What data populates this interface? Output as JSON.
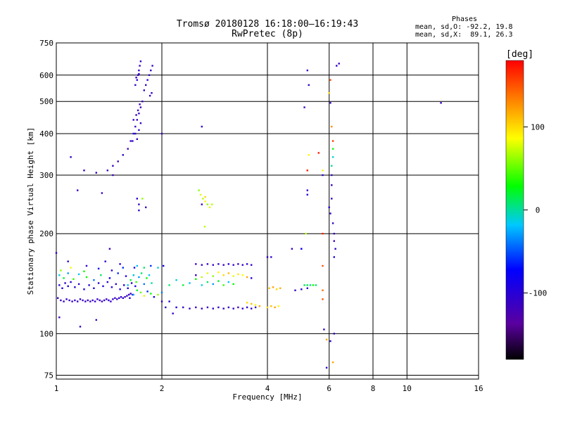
{
  "header": {
    "title_line1": "Tromsø 20180128 16:18:00–16:19:43",
    "title_line2": "RwPretec (8p)"
  },
  "stats": {
    "title": "Phases",
    "line1": "mean, sd,O: -92.2, 19.8",
    "line2": "mean, sd,X:  89.1, 26.3"
  },
  "colorbar": {
    "unit": "[deg]",
    "ticks": [
      "100",
      "0",
      "-100"
    ],
    "tick_values": [
      100,
      0,
      -100
    ],
    "range": [
      -180,
      180
    ]
  },
  "chart_data": {
    "type": "scatter",
    "xlabel": "Frequency [MHz]",
    "ylabel": "Stationary phase Virtual Height [km]",
    "xscale": "log",
    "yscale": "log",
    "xlim": [
      1,
      16
    ],
    "ylim": [
      73,
      750
    ],
    "xticks": [
      "1",
      "2",
      "4",
      "6",
      "8",
      "10",
      "16"
    ],
    "xtick_values": [
      1,
      2,
      4,
      6,
      8,
      10,
      16
    ],
    "yticks": [
      "75",
      "100",
      "200",
      "300",
      "400",
      "500",
      "600",
      "750"
    ],
    "ytick_values": [
      75,
      100,
      200,
      300,
      400,
      500,
      600,
      750
    ],
    "grid": true,
    "colorbar_label": "[deg]",
    "points": [
      [
        1.01,
        128,
        -110
      ],
      [
        1.03,
        126,
        -115
      ],
      [
        1.05,
        125,
        -105
      ],
      [
        1.07,
        127,
        -110
      ],
      [
        1.09,
        126,
        -112
      ],
      [
        1.11,
        125,
        -108
      ],
      [
        1.13,
        126,
        -115
      ],
      [
        1.15,
        125,
        -110
      ],
      [
        1.17,
        127,
        -105
      ],
      [
        1.19,
        126,
        -110
      ],
      [
        1.21,
        125,
        -112
      ],
      [
        1.23,
        126,
        -108
      ],
      [
        1.25,
        125,
        -115
      ],
      [
        1.27,
        126,
        -110
      ],
      [
        1.29,
        125,
        -105
      ],
      [
        1.31,
        127,
        -110
      ],
      [
        1.33,
        126,
        -112
      ],
      [
        1.35,
        125,
        -108
      ],
      [
        1.37,
        126,
        -115
      ],
      [
        1.39,
        127,
        -110
      ],
      [
        1.41,
        126,
        -105
      ],
      [
        1.43,
        125,
        -110
      ],
      [
        1.45,
        127,
        -112
      ],
      [
        1.47,
        128,
        -108
      ],
      [
        1.49,
        127,
        -115
      ],
      [
        1.51,
        128,
        -110
      ],
      [
        1.53,
        129,
        -105
      ],
      [
        1.55,
        128,
        -110
      ],
      [
        1.57,
        129,
        -112
      ],
      [
        1.59,
        130,
        -108
      ],
      [
        1.61,
        131,
        -115
      ],
      [
        1.63,
        132,
        -110
      ],
      [
        1.65,
        131,
        -105
      ],
      [
        1.02,
        140,
        -100
      ],
      [
        1.04,
        137,
        -95
      ],
      [
        1.06,
        142,
        -105
      ],
      [
        1.08,
        139,
        -90
      ],
      [
        1.1,
        143,
        -100
      ],
      [
        1.13,
        138,
        -95
      ],
      [
        1.16,
        141,
        -105
      ],
      [
        1.2,
        136,
        -90
      ],
      [
        1.24,
        140,
        -100
      ],
      [
        1.28,
        137,
        -95
      ],
      [
        1.32,
        142,
        -105
      ],
      [
        1.36,
        139,
        -90
      ],
      [
        1.4,
        143,
        -100
      ],
      [
        1.44,
        138,
        -95
      ],
      [
        1.48,
        141,
        -105
      ],
      [
        1.52,
        136,
        -90
      ],
      [
        1.56,
        140,
        -100
      ],
      [
        1.6,
        137,
        -95
      ],
      [
        1.64,
        142,
        -105
      ],
      [
        1.68,
        139,
        -90
      ],
      [
        1.02,
        150,
        -10
      ],
      [
        1.05,
        147,
        20
      ],
      [
        1.08,
        152,
        -30
      ],
      [
        1.12,
        146,
        40
      ],
      [
        1.16,
        151,
        -20
      ],
      [
        1.22,
        148,
        30
      ],
      [
        1.28,
        145,
        -40
      ],
      [
        1.34,
        150,
        10
      ],
      [
        1.42,
        147,
        -80
      ],
      [
        1.5,
        152,
        -60
      ],
      [
        1.58,
        149,
        -90
      ],
      [
        1.66,
        150,
        -75
      ],
      [
        1.03,
        155,
        60
      ],
      [
        1.1,
        158,
        90
      ],
      [
        1.2,
        154,
        30
      ],
      [
        1.32,
        157,
        -70
      ],
      [
        1.44,
        155,
        -100
      ],
      [
        1.55,
        158,
        -60
      ],
      [
        1.0,
        175,
        -110
      ],
      [
        1.08,
        165,
        -100
      ],
      [
        1.22,
        160,
        -110
      ],
      [
        1.38,
        165,
        -105
      ],
      [
        1.52,
        162,
        -100
      ],
      [
        1.67,
        158,
        -90
      ],
      [
        1.02,
        112,
        -115
      ],
      [
        1.17,
        105,
        -110
      ],
      [
        1.3,
        110,
        -112
      ],
      [
        1.42,
        180,
        -115
      ],
      [
        1.6,
        140,
        -20
      ],
      [
        1.63,
        145,
        20
      ],
      [
        1.66,
        150,
        -10
      ],
      [
        1.69,
        143,
        40
      ],
      [
        1.72,
        148,
        -30
      ],
      [
        1.75,
        152,
        10
      ],
      [
        1.78,
        141,
        -40
      ],
      [
        1.81,
        147,
        30
      ],
      [
        1.84,
        150,
        -20
      ],
      [
        1.87,
        142,
        0
      ],
      [
        1.62,
        128,
        -100
      ],
      [
        1.66,
        131,
        -30
      ],
      [
        1.7,
        135,
        20
      ],
      [
        1.74,
        133,
        50
      ],
      [
        1.78,
        130,
        80
      ],
      [
        1.82,
        134,
        -60
      ],
      [
        1.86,
        132,
        30
      ],
      [
        1.9,
        129,
        -80
      ],
      [
        1.95,
        131,
        60
      ],
      [
        2.0,
        133,
        -40
      ],
      [
        1.7,
        160,
        -20
      ],
      [
        1.78,
        158,
        10
      ],
      [
        1.86,
        160,
        -60
      ],
      [
        1.95,
        158,
        -10
      ],
      [
        2.02,
        160,
        -80
      ],
      [
        2.0,
        125,
        -110
      ],
      [
        2.05,
        120,
        -105
      ],
      [
        2.1,
        125,
        -100
      ],
      [
        2.15,
        115,
        -110
      ],
      [
        2.2,
        120,
        -95
      ],
      [
        1.4,
        310,
        -115
      ],
      [
        1.45,
        320,
        -110
      ],
      [
        1.5,
        330,
        -112
      ],
      [
        1.55,
        345,
        -108
      ],
      [
        1.6,
        360,
        -115
      ],
      [
        1.63,
        380,
        -110
      ],
      [
        1.66,
        400,
        -105
      ],
      [
        1.68,
        420,
        -110
      ],
      [
        1.7,
        440,
        -112
      ],
      [
        1.72,
        460,
        -108
      ],
      [
        1.74,
        480,
        -115
      ],
      [
        1.76,
        500,
        -110
      ],
      [
        1.65,
        380,
        -110
      ],
      [
        1.68,
        400,
        -105
      ],
      [
        1.7,
        385,
        -115
      ],
      [
        1.72,
        410,
        -108
      ],
      [
        1.74,
        430,
        -110
      ],
      [
        1.66,
        440,
        -112
      ],
      [
        1.69,
        455,
        -105
      ],
      [
        1.71,
        470,
        -110
      ],
      [
        1.73,
        490,
        -115
      ],
      [
        1.68,
        560,
        -110
      ],
      [
        1.7,
        580,
        -105
      ],
      [
        1.71,
        600,
        -112
      ],
      [
        1.72,
        620,
        -108
      ],
      [
        1.73,
        640,
        -115
      ],
      [
        1.74,
        660,
        -110
      ],
      [
        1.69,
        590,
        -105
      ],
      [
        1.72,
        605,
        -110
      ],
      [
        1.78,
        540,
        -100
      ],
      [
        1.8,
        560,
        -110
      ],
      [
        1.82,
        580,
        -105
      ],
      [
        1.84,
        600,
        -112
      ],
      [
        1.86,
        620,
        -108
      ],
      [
        1.88,
        640,
        -115
      ],
      [
        1.85,
        520,
        -110
      ],
      [
        1.87,
        530,
        -105
      ],
      [
        1.45,
        300,
        -110
      ],
      [
        1.3,
        305,
        -105
      ],
      [
        1.2,
        310,
        -112
      ],
      [
        1.1,
        340,
        -108
      ],
      [
        1.15,
        270,
        -115
      ],
      [
        1.35,
        265,
        -110
      ],
      [
        1.7,
        255,
        -100
      ],
      [
        1.72,
        245,
        -110
      ],
      [
        1.72,
        235,
        -105
      ],
      [
        1.76,
        255,
        60
      ],
      [
        1.8,
        240,
        -110
      ],
      [
        2.0,
        400,
        -110
      ],
      [
        2.6,
        420,
        -105
      ],
      [
        2.55,
        270,
        60
      ],
      [
        2.58,
        262,
        80
      ],
      [
        2.62,
        255,
        70
      ],
      [
        2.66,
        250,
        90
      ],
      [
        2.7,
        245,
        60
      ],
      [
        2.74,
        240,
        80
      ],
      [
        2.78,
        245,
        70
      ],
      [
        2.66,
        258,
        100
      ],
      [
        2.6,
        245,
        -110
      ],
      [
        2.65,
        210,
        70
      ],
      [
        2.1,
        140,
        10
      ],
      [
        2.2,
        145,
        -10
      ],
      [
        2.3,
        140,
        20
      ],
      [
        2.4,
        142,
        -20
      ],
      [
        2.5,
        146,
        30
      ],
      [
        2.6,
        140,
        -10
      ],
      [
        2.7,
        143,
        10
      ],
      [
        2.8,
        141,
        -30
      ],
      [
        2.9,
        144,
        20
      ],
      [
        3.0,
        140,
        40
      ],
      [
        3.1,
        143,
        -20
      ],
      [
        3.2,
        141,
        30
      ],
      [
        2.5,
        162,
        -110
      ],
      [
        2.6,
        161,
        -105
      ],
      [
        2.7,
        162,
        -115
      ],
      [
        2.8,
        161,
        -108
      ],
      [
        2.9,
        162,
        -110
      ],
      [
        3.0,
        161,
        -112
      ],
      [
        3.1,
        162,
        -105
      ],
      [
        3.2,
        161,
        -110
      ],
      [
        3.3,
        162,
        -115
      ],
      [
        3.4,
        161,
        -108
      ],
      [
        3.5,
        162,
        -110
      ],
      [
        3.6,
        161,
        -112
      ],
      [
        2.5,
        150,
        -110
      ],
      [
        2.6,
        148,
        70
      ],
      [
        2.7,
        152,
        80
      ],
      [
        2.8,
        149,
        60
      ],
      [
        2.9,
        153,
        90
      ],
      [
        3.0,
        150,
        100
      ],
      [
        3.1,
        152,
        110
      ],
      [
        3.2,
        149,
        80
      ],
      [
        3.3,
        151,
        95
      ],
      [
        3.4,
        150,
        85
      ],
      [
        3.5,
        148,
        120
      ],
      [
        3.6,
        147,
        -100
      ],
      [
        2.3,
        120,
        -110
      ],
      [
        2.4,
        119,
        -105
      ],
      [
        2.5,
        120,
        -112
      ],
      [
        2.6,
        119,
        -108
      ],
      [
        2.7,
        120,
        -115
      ],
      [
        2.8,
        119,
        -110
      ],
      [
        2.9,
        120,
        -105
      ],
      [
        3.0,
        119,
        -110
      ],
      [
        3.1,
        120,
        -112
      ],
      [
        3.2,
        119,
        -108
      ],
      [
        3.3,
        120,
        -115
      ],
      [
        3.4,
        119,
        -110
      ],
      [
        3.5,
        120,
        -105
      ],
      [
        3.6,
        119,
        -110
      ],
      [
        3.7,
        120,
        -112
      ],
      [
        3.5,
        124,
        100
      ],
      [
        3.6,
        123,
        110
      ],
      [
        3.7,
        122,
        90
      ],
      [
        3.8,
        121,
        120
      ],
      [
        4.0,
        120,
        100
      ],
      [
        4.1,
        121,
        110
      ],
      [
        4.2,
        120,
        120
      ],
      [
        4.3,
        121,
        90
      ],
      [
        4.05,
        137,
        110
      ],
      [
        4.15,
        138,
        120
      ],
      [
        4.25,
        136,
        100
      ],
      [
        4.35,
        137,
        115
      ],
      [
        4.0,
        170,
        -110
      ],
      [
        4.1,
        170,
        -105
      ],
      [
        4.7,
        180,
        -110
      ],
      [
        5.0,
        180,
        -105
      ],
      [
        4.8,
        135,
        -110
      ],
      [
        5.0,
        136,
        -105
      ],
      [
        5.2,
        137,
        -110
      ],
      [
        5.1,
        140,
        10
      ],
      [
        5.2,
        140,
        20
      ],
      [
        5.3,
        140,
        0
      ],
      [
        5.4,
        140,
        30
      ],
      [
        5.5,
        140,
        10
      ],
      [
        5.2,
        270,
        -110
      ],
      [
        5.2,
        262,
        -105
      ],
      [
        5.1,
        480,
        -112
      ],
      [
        5.2,
        620,
        -110
      ],
      [
        5.25,
        560,
        -108
      ],
      [
        5.2,
        310,
        170
      ],
      [
        5.25,
        345,
        90
      ],
      [
        5.15,
        200,
        70
      ],
      [
        5.0,
        180,
        -80
      ],
      [
        5.6,
        350,
        170
      ],
      [
        5.75,
        310,
        90
      ],
      [
        5.75,
        300,
        -100
      ],
      [
        5.75,
        200,
        170
      ],
      [
        5.75,
        160,
        150
      ],
      [
        5.75,
        135,
        140
      ],
      [
        5.75,
        127,
        150
      ],
      [
        5.8,
        103,
        -110
      ],
      [
        5.9,
        96,
        120
      ],
      [
        5.9,
        79,
        -110
      ],
      [
        6.1,
        300,
        -110
      ],
      [
        6.1,
        280,
        -110
      ],
      [
        6.1,
        255,
        -105
      ],
      [
        6.0,
        240,
        -100
      ],
      [
        6.05,
        230,
        -110
      ],
      [
        6.15,
        215,
        -105
      ],
      [
        6.2,
        200,
        -112
      ],
      [
        6.2,
        190,
        -110
      ],
      [
        6.25,
        180,
        -108
      ],
      [
        6.05,
        580,
        150
      ],
      [
        6.0,
        530,
        100
      ],
      [
        6.05,
        495,
        -110
      ],
      [
        6.1,
        420,
        130
      ],
      [
        6.15,
        380,
        160
      ],
      [
        6.15,
        360,
        30
      ],
      [
        6.15,
        340,
        -10
      ],
      [
        6.1,
        320,
        0
      ],
      [
        6.2,
        170,
        -90
      ],
      [
        6.2,
        100,
        -110
      ],
      [
        6.05,
        95,
        -105
      ],
      [
        6.15,
        82,
        120
      ],
      [
        6.4,
        650,
        -110
      ],
      [
        6.3,
        640,
        -105
      ],
      [
        12.5,
        495,
        -110
      ]
    ]
  }
}
